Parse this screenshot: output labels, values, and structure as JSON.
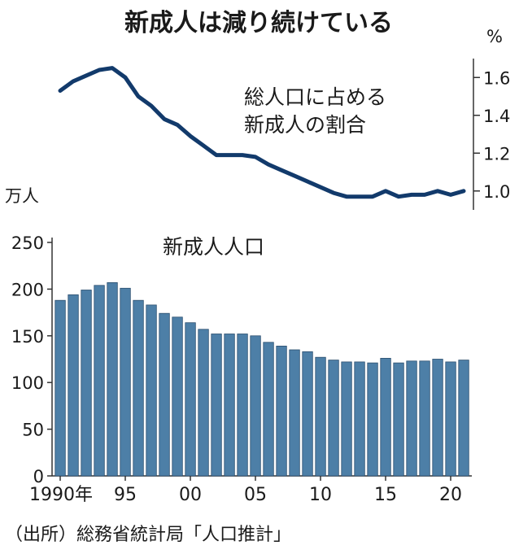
{
  "title": "新成人は減り続けている",
  "source": "（出所）総務省統計局「人口推計」",
  "colors": {
    "line": "#123a6b",
    "bar": "#4d7fa7",
    "bar_edge": "#2b4e6e",
    "axis": "#333333"
  },
  "chart_data": [
    {
      "type": "line",
      "title": "",
      "annotation": [
        "総人口に占める",
        "新成人の割合"
      ],
      "unit": "%",
      "ylim": [
        0.9,
        1.7
      ],
      "yticks": [
        1.0,
        1.2,
        1.4,
        1.6
      ],
      "ytick_labels": [
        "1.0",
        "1.2",
        "1.4",
        "1.6"
      ],
      "x": [
        1990,
        1991,
        1992,
        1993,
        1994,
        1995,
        1996,
        1997,
        1998,
        1999,
        2000,
        2001,
        2002,
        2003,
        2004,
        2005,
        2006,
        2007,
        2008,
        2009,
        2010,
        2011,
        2012,
        2013,
        2014,
        2015,
        2016,
        2017,
        2018,
        2019,
        2020,
        2021
      ],
      "values": [
        1.53,
        1.58,
        1.61,
        1.64,
        1.65,
        1.6,
        1.5,
        1.45,
        1.38,
        1.35,
        1.29,
        1.24,
        1.19,
        1.19,
        1.19,
        1.18,
        1.14,
        1.11,
        1.08,
        1.05,
        1.02,
        0.99,
        0.97,
        0.97,
        0.97,
        1.0,
        0.97,
        0.98,
        0.98,
        1.0,
        0.98,
        1.0
      ]
    },
    {
      "type": "bar",
      "title": "新成人人口",
      "unit": "万人",
      "ylim": [
        0,
        250
      ],
      "yticks": [
        0,
        50,
        100,
        150,
        200,
        250
      ],
      "ytick_labels": [
        "0",
        "50",
        "100",
        "150",
        "200",
        "250"
      ],
      "x": [
        1990,
        1991,
        1992,
        1993,
        1994,
        1995,
        1996,
        1997,
        1998,
        1999,
        2000,
        2001,
        2002,
        2003,
        2004,
        2005,
        2006,
        2007,
        2008,
        2009,
        2010,
        2011,
        2012,
        2013,
        2014,
        2015,
        2016,
        2017,
        2018,
        2019,
        2020,
        2021
      ],
      "values": [
        188,
        194,
        199,
        204,
        207,
        201,
        188,
        183,
        174,
        170,
        164,
        157,
        152,
        152,
        152,
        150,
        143,
        139,
        135,
        133,
        127,
        124,
        122,
        122,
        121,
        126,
        121,
        123,
        123,
        125,
        122,
        124
      ],
      "xtick_labels": [
        {
          "x": 1990,
          "label": "1990年"
        },
        {
          "x": 1995,
          "label": "95"
        },
        {
          "x": 2000,
          "label": "00"
        },
        {
          "x": 2005,
          "label": "05"
        },
        {
          "x": 2010,
          "label": "10"
        },
        {
          "x": 2015,
          "label": "15"
        },
        {
          "x": 2020,
          "label": "20"
        }
      ]
    }
  ]
}
